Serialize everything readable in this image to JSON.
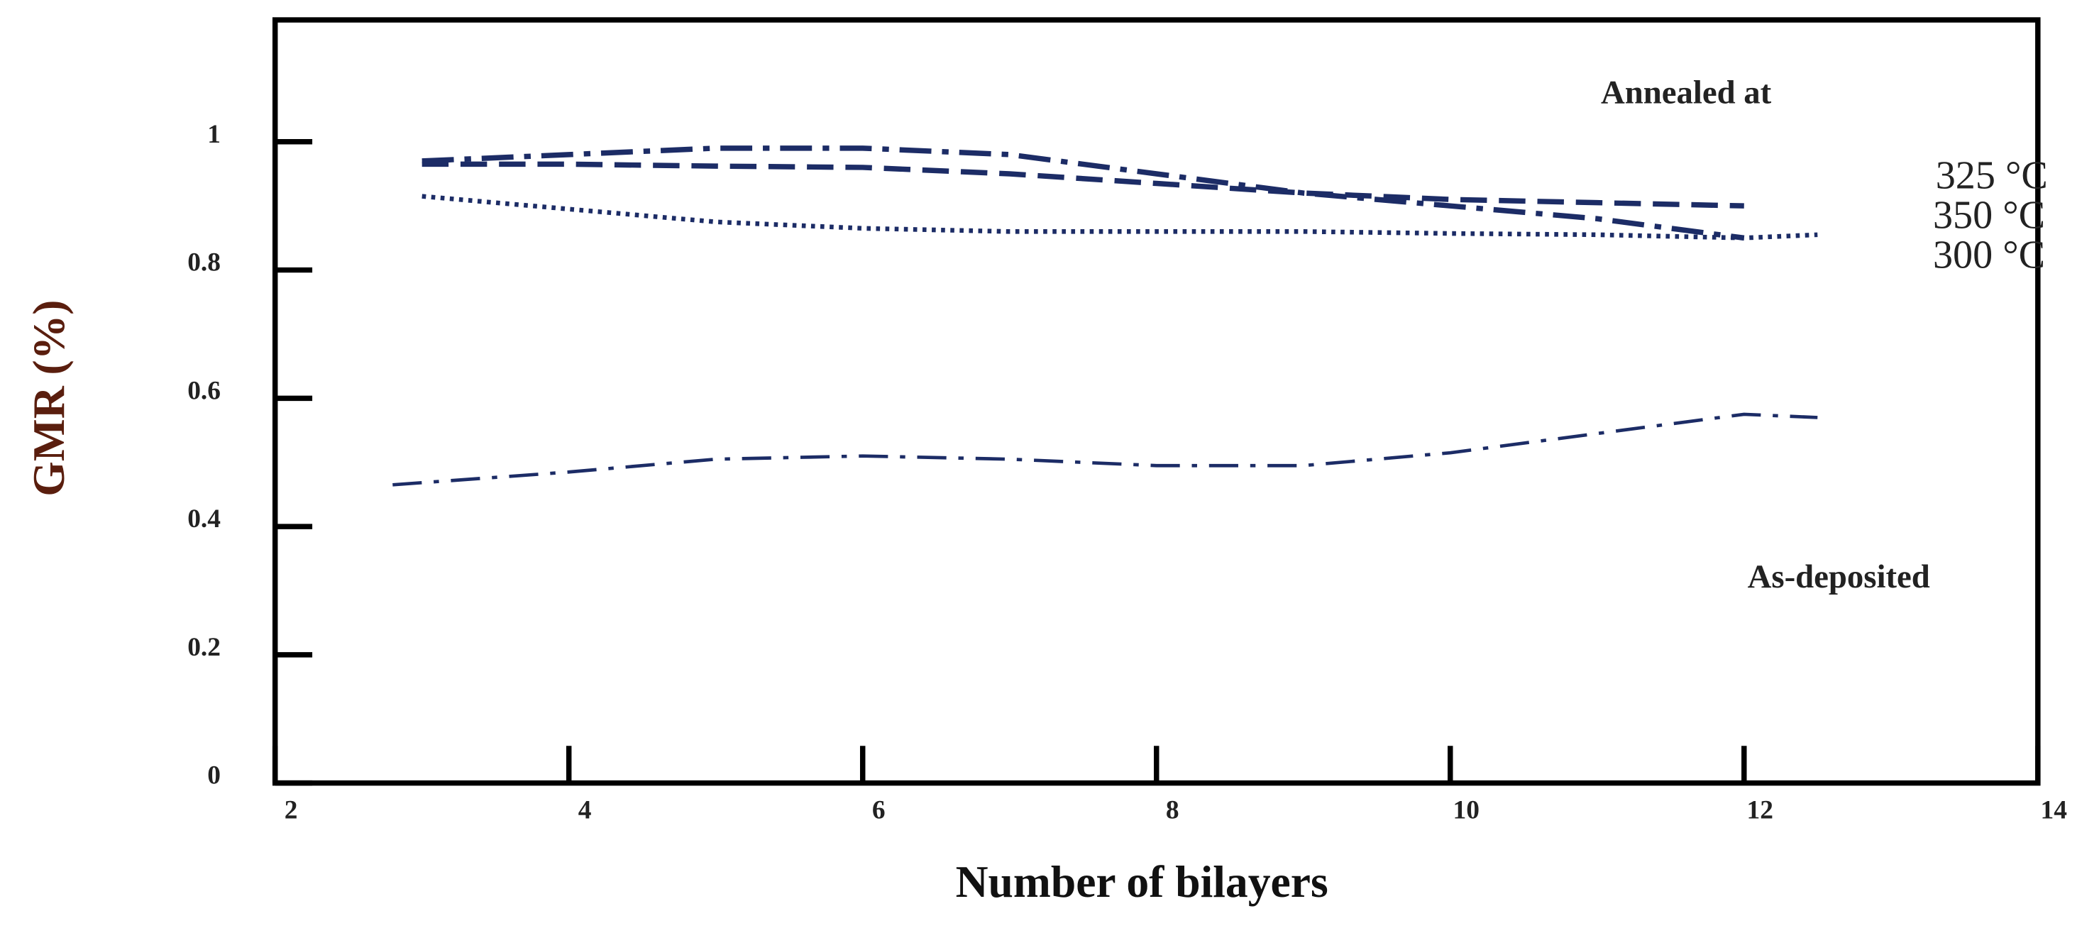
{
  "chart_data": {
    "type": "line",
    "xlabel": "Number of bilayers",
    "ylabel": "GMR (%)",
    "xlim": [
      2,
      14
    ],
    "xticks": [
      2,
      4,
      6,
      8,
      10,
      12,
      14
    ],
    "ylim": [
      0,
      1.19
    ],
    "yticks": [
      0,
      0.2,
      0.4,
      0.6,
      0.8,
      1
    ],
    "annotations": [
      "Annealed at"
    ],
    "series": [
      {
        "name": "325 °C",
        "color": "#1c2c66",
        "dash": "dashed",
        "x": [
          3,
          4,
          5,
          6,
          7,
          8,
          9,
          10,
          11,
          12
        ],
        "values": [
          0.965,
          0.965,
          0.962,
          0.96,
          0.95,
          0.935,
          0.92,
          0.91,
          0.905,
          0.9
        ]
      },
      {
        "name": "350 °C",
        "color": "#1c2c66",
        "dash": "dashdot",
        "x": [
          3,
          4,
          5,
          6,
          7,
          8,
          9,
          10,
          11,
          12
        ],
        "values": [
          0.97,
          0.98,
          0.99,
          0.99,
          0.98,
          0.95,
          0.92,
          0.9,
          0.88,
          0.85
        ]
      },
      {
        "name": "300 °C",
        "color": "#1c2c66",
        "dash": "dotted",
        "x": [
          3,
          4,
          5,
          6,
          7,
          8,
          9,
          10,
          11,
          12,
          12.5
        ],
        "values": [
          0.915,
          0.895,
          0.875,
          0.865,
          0.86,
          0.86,
          0.86,
          0.857,
          0.855,
          0.85,
          0.855
        ]
      },
      {
        "name": "As-deposited",
        "color": "#1c2c66",
        "dash": "dashdot-thin",
        "x": [
          2.8,
          4,
          5,
          6,
          7,
          8,
          9,
          10,
          11,
          12,
          12.5
        ],
        "values": [
          0.465,
          0.485,
          0.505,
          0.51,
          0.505,
          0.495,
          0.495,
          0.515,
          0.545,
          0.575,
          0.57
        ]
      }
    ]
  }
}
